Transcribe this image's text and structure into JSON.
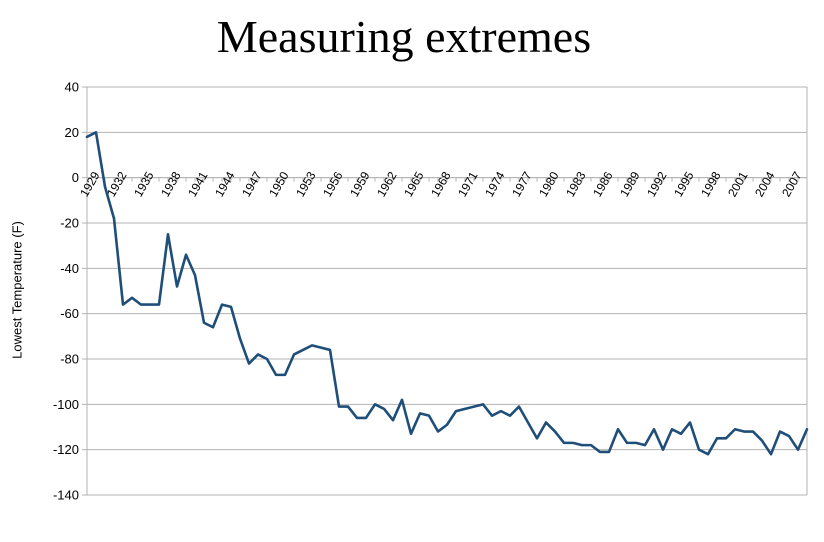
{
  "chart_data": {
    "type": "line",
    "title": "Measuring extremes",
    "xlabel": "",
    "ylabel": "Lowest Temperature (F)",
    "ylim": [
      -140,
      40
    ],
    "yticks": [
      40,
      20,
      0,
      -20,
      -40,
      -60,
      -80,
      -100,
      -120,
      -140
    ],
    "xlim": [
      1928,
      2008
    ],
    "xticks": [
      1929,
      1932,
      1935,
      1938,
      1941,
      1944,
      1947,
      1950,
      1953,
      1956,
      1959,
      1962,
      1965,
      1968,
      1971,
      1974,
      1977,
      1980,
      1983,
      1986,
      1989,
      1992,
      1995,
      1998,
      2001,
      2004,
      2007
    ],
    "grid": true,
    "line_color": "#1f4e79",
    "series": [
      {
        "x": [
          1928,
          1929,
          1930,
          1931,
          1932,
          1933,
          1934,
          1935,
          1936,
          1937,
          1938,
          1939,
          1940,
          1941,
          1942,
          1943,
          1944,
          1945,
          1946,
          1947,
          1948,
          1949,
          1950,
          1951,
          1952,
          1953,
          1954,
          1955,
          1956,
          1957,
          1958,
          1959,
          1960,
          1961,
          1962,
          1963,
          1964,
          1965,
          1966,
          1967,
          1968,
          1969,
          1970,
          1971,
          1972,
          1973,
          1974,
          1975,
          1976,
          1977,
          1978,
          1979,
          1980,
          1981,
          1982,
          1983,
          1984,
          1985,
          1986,
          1987,
          1988,
          1989,
          1990,
          1991,
          1992,
          1993,
          1994,
          1995,
          1996,
          1997,
          1998,
          1999,
          2000,
          2001,
          2002,
          2003,
          2004,
          2005,
          2006,
          2007,
          2008
        ],
        "values": [
          18,
          20,
          -4,
          -18,
          -56,
          -53,
          -56,
          -56,
          -56,
          -25,
          -48,
          -34,
          -43,
          -64,
          -66,
          -56,
          -57,
          -71,
          -82,
          -78,
          -80,
          -87,
          -87,
          -78,
          -76,
          -74,
          -75,
          -76,
          -101,
          -101,
          -106,
          -106,
          -100,
          -102,
          -107,
          -98,
          -113,
          -104,
          -105,
          -112,
          -109,
          -103,
          -102,
          -101,
          -100,
          -105,
          -103,
          -105,
          -101,
          -108,
          -115,
          -108,
          -112,
          -117,
          -117,
          -118,
          -118,
          -121,
          -121,
          -111,
          -117,
          -117,
          -118,
          -111,
          -120,
          -111,
          -113,
          -108,
          -120,
          -122,
          -115,
          -115,
          -111,
          -112,
          -112,
          -116,
          -122,
          -112,
          -114,
          -120,
          -111
        ]
      }
    ]
  }
}
